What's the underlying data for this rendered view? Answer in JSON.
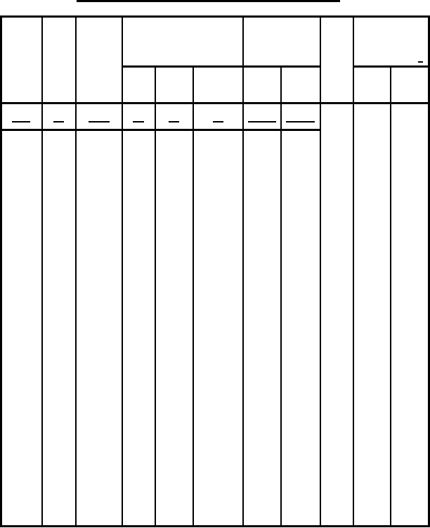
{
  "form": {
    "type": "blank ruled table form",
    "line_color": "#000000",
    "background_color": "#ffffff"
  }
}
